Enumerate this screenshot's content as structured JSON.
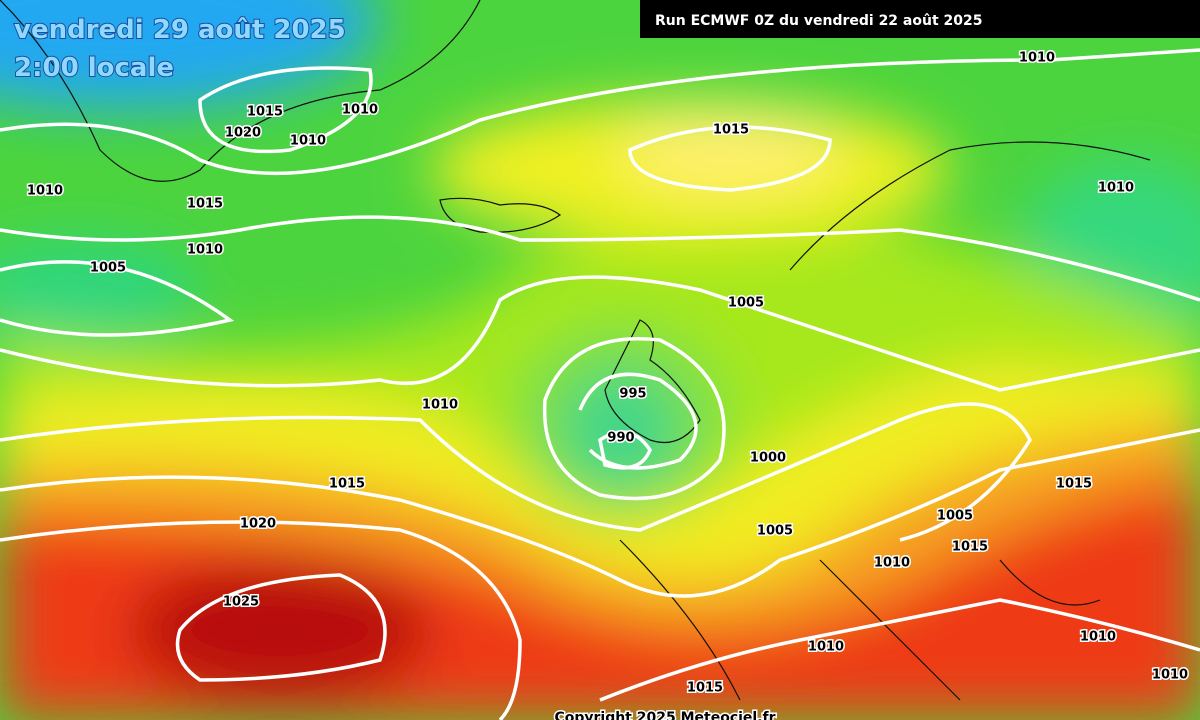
{
  "header": {
    "date": "vendredi 29 août 2025",
    "time": "2:00 locale"
  },
  "run": "Run ECMWF 0Z du vendredi 22 août 2025",
  "isobar_labels": [
    "1010",
    "1015",
    "1010",
    "1020",
    "1010",
    "1015",
    "1010",
    "1015",
    "1010",
    "1010",
    "1005",
    "1005",
    "995",
    "1010",
    "990",
    "1000",
    "1015",
    "1015",
    "1020",
    "1005",
    "1005",
    "1015",
    "1010",
    "1025",
    "1010",
    "1010",
    "1015",
    "1010"
  ],
  "copyright": "Copyright 2025 Meteociel.fr"
}
